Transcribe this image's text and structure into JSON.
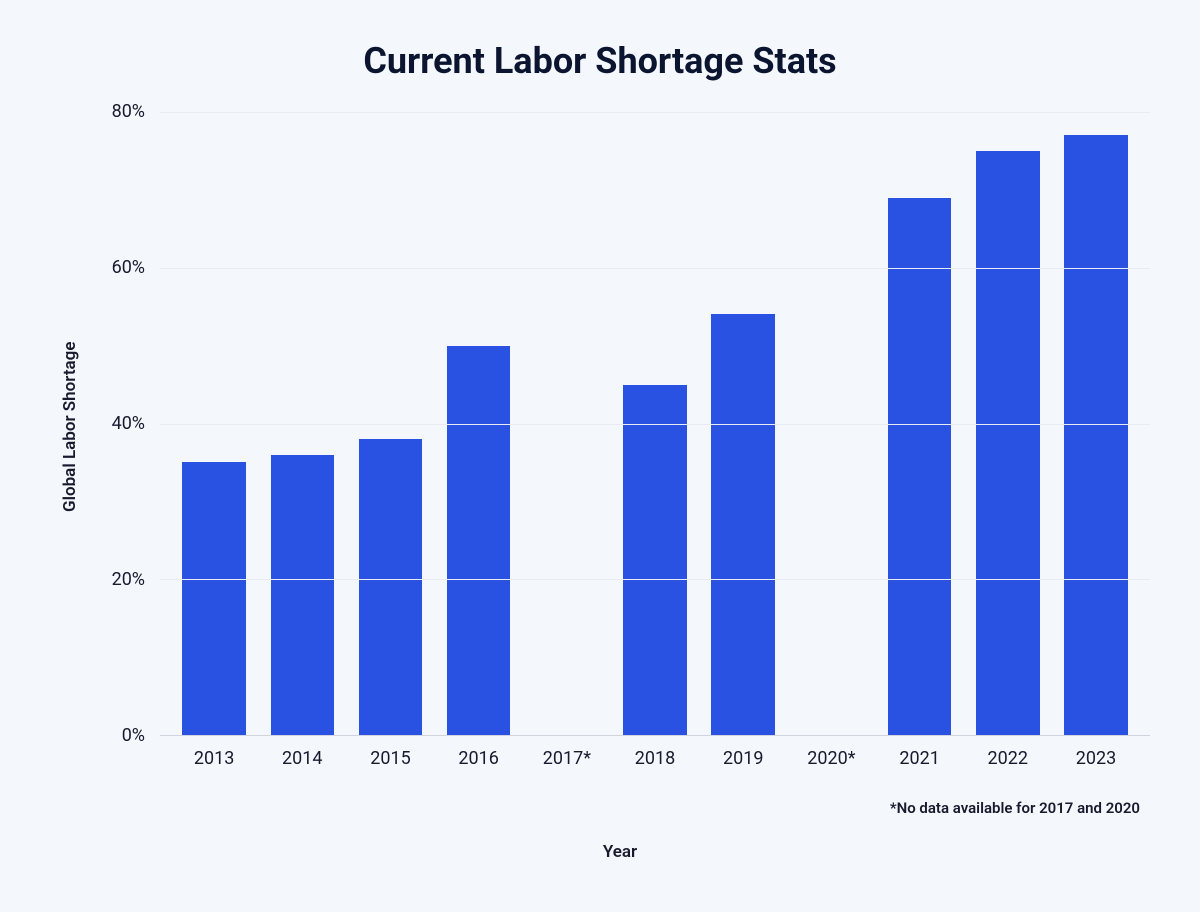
{
  "chart": {
    "type": "bar",
    "title": "Current Labor Shortage Stats",
    "title_fontsize": 36,
    "title_color": "#0b1530",
    "y_axis_label": "Global Labor Shortage",
    "x_axis_label": "Year",
    "axis_label_fontsize": 17,
    "axis_label_color": "#1a1a2e",
    "footnote": "*No data available for 2017 and 2020",
    "footnote_fontsize": 15,
    "background_color": "#f4f7fc",
    "bar_color": "#2952e3",
    "grid_color": "#e8ebf2",
    "axis_line_color": "#d0d5e0",
    "tick_fontsize": 18,
    "tick_color": "#1a1a2e",
    "bar_width_ratio": 0.72,
    "ylim": [
      0,
      80
    ],
    "ytick_step": 20,
    "y_ticks": [
      "80%",
      "60%",
      "40%",
      "20%",
      "0%"
    ],
    "y_tick_values": [
      80,
      60,
      40,
      20,
      0
    ],
    "categories": [
      "2013",
      "2014",
      "2015",
      "2016",
      "2017*",
      "2018",
      "2019",
      "2020*",
      "2021",
      "2022",
      "2023"
    ],
    "values": [
      35,
      36,
      38,
      50,
      0,
      45,
      54,
      0,
      69,
      75,
      77
    ]
  }
}
